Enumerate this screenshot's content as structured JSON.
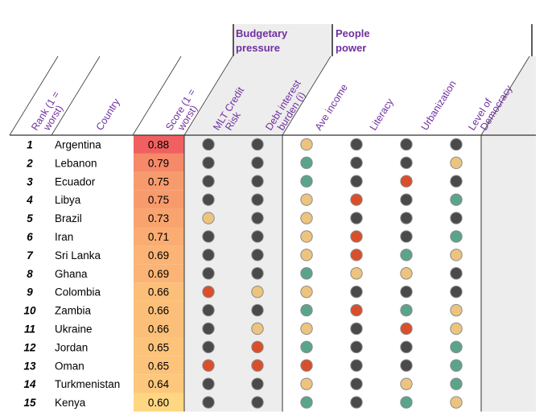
{
  "colors": {
    "red": "#d94f2b",
    "green": "#5aa58a",
    "amber": "#edc47e",
    "dark": "#4a4a4a",
    "header_text": "#7030a0",
    "shade": "#ededed"
  },
  "chart_data": {
    "type": "table",
    "groups": [
      {
        "label_lines": [
          "Budgetary",
          "pressure"
        ]
      },
      {
        "label_lines": [
          "People",
          "power"
        ]
      }
    ],
    "columns": [
      {
        "key": "rank",
        "lines": [
          "Rank (1 =",
          "worst)"
        ]
      },
      {
        "key": "country",
        "lines": [
          "Country"
        ]
      },
      {
        "key": "score",
        "lines": [
          "Score (1 =",
          "worst)"
        ]
      },
      {
        "key": "mlt",
        "lines": [
          "MLT Credit",
          "Risk"
        ]
      },
      {
        "key": "debt",
        "lines": [
          "Debt interest",
          "burden (i)"
        ]
      },
      {
        "key": "income",
        "lines": [
          "Ave income"
        ]
      },
      {
        "key": "literacy",
        "lines": [
          "Literacy"
        ]
      },
      {
        "key": "urban",
        "lines": [
          "Urbanization"
        ]
      },
      {
        "key": "democracy",
        "lines": [
          "Level of",
          "Democracy"
        ]
      }
    ],
    "rows": [
      {
        "rank": "1",
        "country": "Argentina",
        "score": "0.88",
        "ind": [
          "dark",
          "dark",
          "amber",
          "dark",
          "dark",
          "dark"
        ]
      },
      {
        "rank": "2",
        "country": "Lebanon",
        "score": "0.79",
        "ind": [
          "dark",
          "dark",
          "green",
          "dark",
          "dark",
          "amber"
        ]
      },
      {
        "rank": "3",
        "country": "Ecuador",
        "score": "0.75",
        "ind": [
          "dark",
          "dark",
          "green",
          "dark",
          "red",
          "dark"
        ]
      },
      {
        "rank": "4",
        "country": "Libya",
        "score": "0.75",
        "ind": [
          "dark",
          "dark",
          "amber",
          "red",
          "dark",
          "green"
        ]
      },
      {
        "rank": "5",
        "country": "Brazil",
        "score": "0.73",
        "ind": [
          "amber",
          "dark",
          "amber",
          "dark",
          "dark",
          "dark"
        ]
      },
      {
        "rank": "6",
        "country": "Iran",
        "score": "0.71",
        "ind": [
          "dark",
          "dark",
          "amber",
          "red",
          "dark",
          "green"
        ]
      },
      {
        "rank": "7",
        "country": "Sri Lanka",
        "score": "0.69",
        "ind": [
          "dark",
          "dark",
          "amber",
          "red",
          "green",
          "amber"
        ]
      },
      {
        "rank": "8",
        "country": "Ghana",
        "score": "0.69",
        "ind": [
          "dark",
          "dark",
          "green",
          "amber",
          "amber",
          "dark"
        ]
      },
      {
        "rank": "9",
        "country": "Colombia",
        "score": "0.66",
        "ind": [
          "red",
          "amber",
          "amber",
          "dark",
          "dark",
          "dark"
        ]
      },
      {
        "rank": "10",
        "country": "Zambia",
        "score": "0.66",
        "ind": [
          "dark",
          "dark",
          "green",
          "red",
          "green",
          "amber"
        ]
      },
      {
        "rank": "11",
        "country": "Ukraine",
        "score": "0.66",
        "ind": [
          "dark",
          "amber",
          "amber",
          "dark",
          "red",
          "amber"
        ]
      },
      {
        "rank": "12",
        "country": "Jordan",
        "score": "0.65",
        "ind": [
          "dark",
          "red",
          "green",
          "dark",
          "dark",
          "green"
        ]
      },
      {
        "rank": "13",
        "country": "Oman",
        "score": "0.65",
        "ind": [
          "red",
          "red",
          "red",
          "dark",
          "dark",
          "green"
        ]
      },
      {
        "rank": "14",
        "country": "Turkmenistan",
        "score": "0.64",
        "ind": [
          "dark",
          "dark",
          "amber",
          "dark",
          "amber",
          "green"
        ]
      },
      {
        "rank": "15",
        "country": "Kenya",
        "score": "0.60",
        "ind": [
          "dark",
          "dark",
          "green",
          "dark",
          "green",
          "amber"
        ]
      }
    ]
  }
}
